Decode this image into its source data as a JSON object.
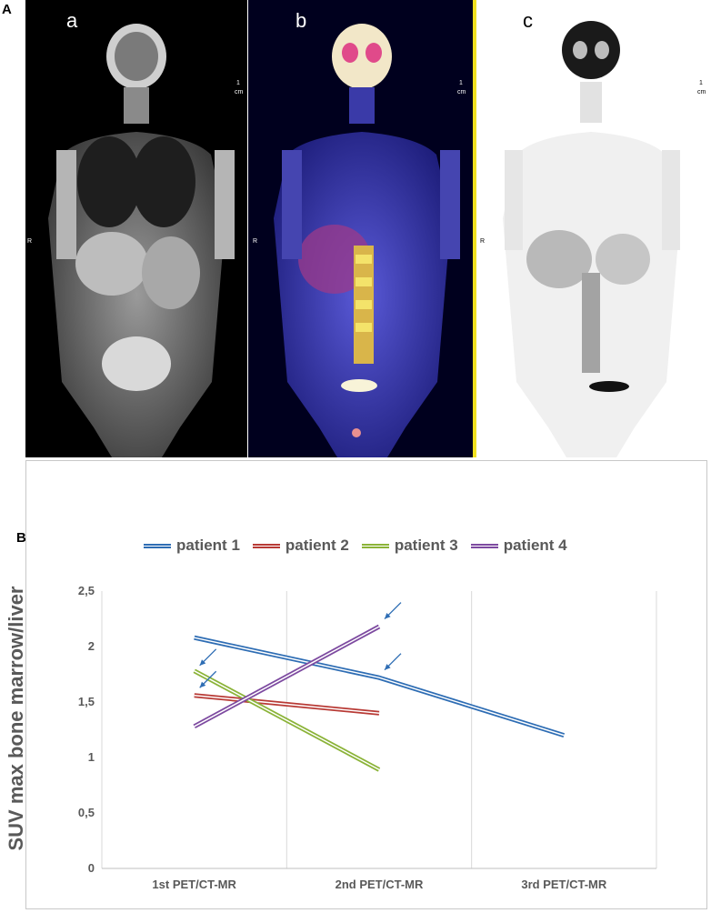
{
  "panel_a_label": "A",
  "panel_b_label": "B",
  "scans": [
    {
      "letter": "a",
      "marker_r": "R",
      "marker_1": "1",
      "marker_2": "cm"
    },
    {
      "letter": "b",
      "marker_r": "R",
      "marker_1": "1",
      "marker_2": "cm"
    },
    {
      "letter": "c",
      "marker_r": "R",
      "marker_1": "1",
      "marker_2": "cm"
    }
  ],
  "chart_data": {
    "type": "line",
    "title": "",
    "xlabel": "",
    "ylabel": "SUV max bone marrow/liver",
    "categories": [
      "1st PET/CT-MR",
      "2nd PET/CT-MR",
      "3rd PET/CT-MR"
    ],
    "yticks": [
      "0",
      "0,5",
      "1",
      "1,5",
      "2",
      "2,5"
    ],
    "ylim": [
      0,
      2.5
    ],
    "grid": true,
    "legend_position": "top",
    "series": [
      {
        "name": "patient 1",
        "color": "#2e6db4",
        "values": [
          2.08,
          1.72,
          1.2
        ]
      },
      {
        "name": "patient 2",
        "color": "#b83a35",
        "values": [
          1.56,
          1.4,
          null
        ]
      },
      {
        "name": "patient 3",
        "color": "#8bb338",
        "values": [
          1.78,
          0.89,
          null
        ]
      },
      {
        "name": "patient 4",
        "color": "#7d4aa0",
        "values": [
          1.28,
          2.18,
          null
        ]
      }
    ],
    "annotations": [
      {
        "type": "arrow",
        "series": "patient 3",
        "category": "1st PET/CT-MR",
        "value": 1.78
      },
      {
        "type": "arrow",
        "series": "patient 2",
        "category": "1st PET/CT-MR",
        "value": 1.58
      },
      {
        "type": "arrow",
        "series": "patient 4",
        "category": "2nd PET/CT-MR",
        "value": 2.2
      },
      {
        "type": "arrow",
        "series": "patient 1",
        "category": "2nd PET/CT-MR",
        "value": 1.74
      }
    ]
  }
}
